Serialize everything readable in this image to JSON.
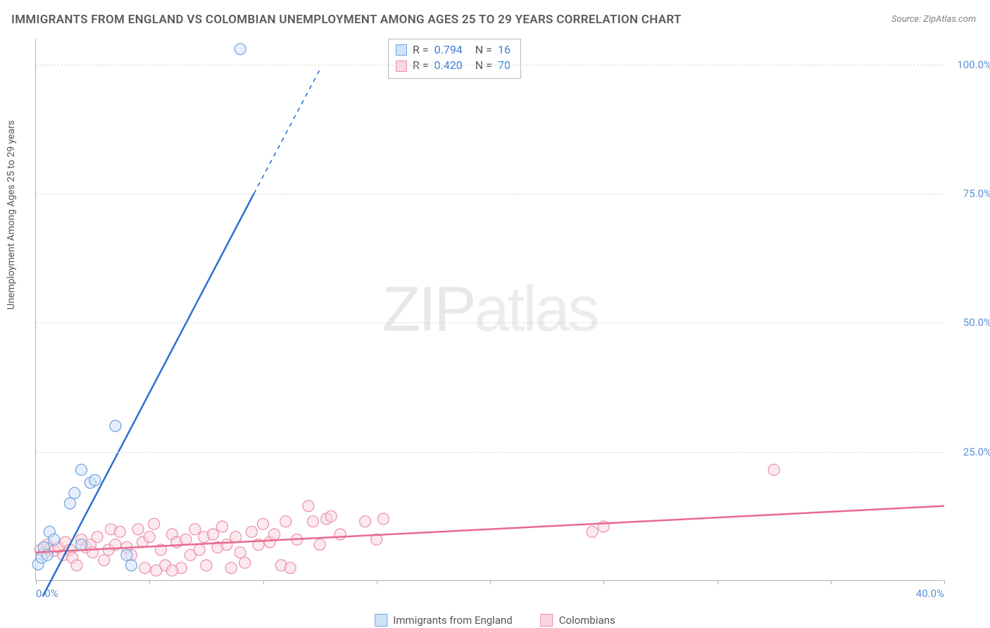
{
  "title": "IMMIGRANTS FROM ENGLAND VS COLOMBIAN UNEMPLOYMENT AMONG AGES 25 TO 29 YEARS CORRELATION CHART",
  "source_label": "Source:",
  "source_value": "ZipAtlas.com",
  "watermark": {
    "part1": "ZIP",
    "part2": "atlas"
  },
  "y_axis_label": "Unemployment Among Ages 25 to 29 years",
  "colors": {
    "series_a_fill": "#cfe2f7",
    "series_a_stroke": "#6aa3e0",
    "series_a_line": "#2e6fd1",
    "series_b_fill": "#fad7e0",
    "series_b_stroke": "#e98fa8",
    "series_b_line": "#e86a8f",
    "tick_label": "#5a8fd6",
    "grid": "#d8d8d8",
    "axis": "#b0b0b0",
    "title": "#5a5a5a"
  },
  "chart": {
    "type": "scatter",
    "xlim": [
      0,
      40
    ],
    "ylim": [
      0,
      105
    ],
    "x_ticks": [
      0,
      5,
      10,
      15,
      20,
      25,
      30,
      35,
      40
    ],
    "x_tick_labels": {
      "0": "0.0%",
      "40": "40.0%"
    },
    "y_ticks": [
      25,
      50,
      75,
      100
    ],
    "y_tick_labels": {
      "25": "25.0%",
      "50": "50.0%",
      "75": "75.0%",
      "100": "100.0%"
    },
    "marker_radius": 8,
    "marker_opacity": 0.55,
    "line_width": 2.5
  },
  "stats": {
    "rows": [
      {
        "swatch_fill": "#cfe2f7",
        "swatch_stroke": "#6aa3e0",
        "r_label": "R =",
        "r_val": "0.794",
        "n_label": "N =",
        "n_val": "16"
      },
      {
        "swatch_fill": "#fad7e0",
        "swatch_stroke": "#e98fa8",
        "r_label": "R =",
        "r_val": "0.420",
        "n_label": "N =",
        "n_val": "70"
      }
    ]
  },
  "legend": {
    "items": [
      {
        "swatch_fill": "#cfe2f7",
        "swatch_stroke": "#6aa3e0",
        "label": "Immigrants from England"
      },
      {
        "swatch_fill": "#fad7e0",
        "swatch_stroke": "#e98fa8",
        "label": "Colombians"
      }
    ]
  },
  "series_a": {
    "name": "Immigrants from England",
    "points": [
      [
        0.1,
        3.2
      ],
      [
        0.25,
        4.5
      ],
      [
        0.35,
        6.5
      ],
      [
        0.5,
        5.0
      ],
      [
        0.6,
        9.5
      ],
      [
        0.8,
        8.0
      ],
      [
        1.5,
        15.0
      ],
      [
        1.7,
        17.0
      ],
      [
        2.0,
        21.5
      ],
      [
        2.4,
        19.0
      ],
      [
        2.6,
        19.5
      ],
      [
        3.5,
        30.0
      ],
      [
        4.0,
        5.0
      ],
      [
        4.2,
        3.0
      ],
      [
        2.0,
        7.0
      ],
      [
        9.0,
        103.0
      ]
    ],
    "trend": {
      "x1": 0.3,
      "y1": -3,
      "x2": 9.6,
      "y2": 75,
      "dash_x2": 12.5,
      "dash_y2": 99
    }
  },
  "series_b": {
    "name": "Colombians",
    "points": [
      [
        0.2,
        6.0
      ],
      [
        0.4,
        5.5
      ],
      [
        0.5,
        7.0
      ],
      [
        0.6,
        6.2
      ],
      [
        0.8,
        5.8
      ],
      [
        1.0,
        6.5
      ],
      [
        1.2,
        5.0
      ],
      [
        1.3,
        7.5
      ],
      [
        1.5,
        6.0
      ],
      [
        1.6,
        4.5
      ],
      [
        1.8,
        3.0
      ],
      [
        2.0,
        8.0
      ],
      [
        2.2,
        6.5
      ],
      [
        2.4,
        7.0
      ],
      [
        2.5,
        5.5
      ],
      [
        2.7,
        8.5
      ],
      [
        3.0,
        4.0
      ],
      [
        3.2,
        6.0
      ],
      [
        3.3,
        10.0
      ],
      [
        3.5,
        7.0
      ],
      [
        3.7,
        9.5
      ],
      [
        4.0,
        6.5
      ],
      [
        4.2,
        5.0
      ],
      [
        4.5,
        10.0
      ],
      [
        4.7,
        7.5
      ],
      [
        5.0,
        8.5
      ],
      [
        5.2,
        11.0
      ],
      [
        5.3,
        2.0
      ],
      [
        5.5,
        6.0
      ],
      [
        5.7,
        3.0
      ],
      [
        6.0,
        9.0
      ],
      [
        6.2,
        7.5
      ],
      [
        6.4,
        2.5
      ],
      [
        6.6,
        8.0
      ],
      [
        6.8,
        5.0
      ],
      [
        7.0,
        10.0
      ],
      [
        7.2,
        6.0
      ],
      [
        7.4,
        8.5
      ],
      [
        7.5,
        3.0
      ],
      [
        7.8,
        9.0
      ],
      [
        8.0,
        6.5
      ],
      [
        8.2,
        10.5
      ],
      [
        8.4,
        7.0
      ],
      [
        8.6,
        2.5
      ],
      [
        8.8,
        8.5
      ],
      [
        9.0,
        5.5
      ],
      [
        9.2,
        3.5
      ],
      [
        9.5,
        9.5
      ],
      [
        9.8,
        7.0
      ],
      [
        10.0,
        11.0
      ],
      [
        10.3,
        7.5
      ],
      [
        10.5,
        9.0
      ],
      [
        10.8,
        3.0
      ],
      [
        11.0,
        11.5
      ],
      [
        11.2,
        2.5
      ],
      [
        11.5,
        8.0
      ],
      [
        12.0,
        14.5
      ],
      [
        12.2,
        11.5
      ],
      [
        12.5,
        7.0
      ],
      [
        12.8,
        12.0
      ],
      [
        13.0,
        12.5
      ],
      [
        13.4,
        9.0
      ],
      [
        14.5,
        11.5
      ],
      [
        15.0,
        8.0
      ],
      [
        15.3,
        12.0
      ],
      [
        24.5,
        9.5
      ],
      [
        25.0,
        10.5
      ],
      [
        32.5,
        21.5
      ],
      [
        4.8,
        2.5
      ],
      [
        6.0,
        2.0
      ]
    ],
    "trend": {
      "x1": 0,
      "y1": 5.5,
      "x2": 40,
      "y2": 14.5
    }
  }
}
